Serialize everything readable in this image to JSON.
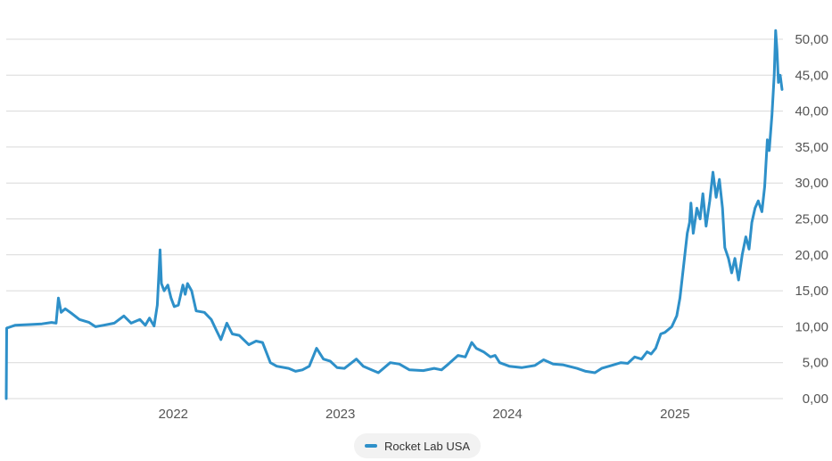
{
  "chart_data": {
    "type": "line",
    "title": "",
    "xlabel": "",
    "ylabel": "",
    "ylim": [
      0,
      50
    ],
    "xlim": [
      "2021-01-01",
      "2025-08-25"
    ],
    "y_ticks": [
      "0,00",
      "5,00",
      "10,00",
      "15,00",
      "20,00",
      "25,00",
      "30,00",
      "35,00",
      "40,00",
      "45,00",
      "50,00"
    ],
    "x_ticks": [
      {
        "label": "2022",
        "date": "2022-01-01"
      },
      {
        "label": "2023",
        "date": "2023-01-01"
      },
      {
        "label": "2024",
        "date": "2024-01-01"
      },
      {
        "label": "2025",
        "date": "2025-01-01"
      }
    ],
    "grid": true,
    "y_axis_position": "right",
    "legend_position": "bottom-center",
    "series": [
      {
        "name": "Rocket Lab USA",
        "color": "#2e90c9",
        "points": [
          [
            "2021-01-01",
            0.0
          ],
          [
            "2021-01-02",
            9.8
          ],
          [
            "2021-01-20",
            10.2
          ],
          [
            "2021-02-20",
            10.3
          ],
          [
            "2021-03-20",
            10.4
          ],
          [
            "2021-04-10",
            10.6
          ],
          [
            "2021-04-20",
            10.5
          ],
          [
            "2021-04-25",
            14.0
          ],
          [
            "2021-05-01",
            12.0
          ],
          [
            "2021-05-10",
            12.5
          ],
          [
            "2021-05-25",
            11.8
          ],
          [
            "2021-06-10",
            11.0
          ],
          [
            "2021-07-01",
            10.6
          ],
          [
            "2021-07-15",
            10.0
          ],
          [
            "2021-08-01",
            10.2
          ],
          [
            "2021-08-25",
            10.5
          ],
          [
            "2021-09-15",
            11.5
          ],
          [
            "2021-10-01",
            10.5
          ],
          [
            "2021-10-20",
            11.0
          ],
          [
            "2021-11-01",
            10.2
          ],
          [
            "2021-11-10",
            11.2
          ],
          [
            "2021-11-20",
            10.1
          ],
          [
            "2021-11-27",
            13.0
          ],
          [
            "2021-12-03",
            20.7
          ],
          [
            "2021-12-06",
            16.0
          ],
          [
            "2021-12-12",
            15.0
          ],
          [
            "2021-12-20",
            15.8
          ],
          [
            "2021-12-27",
            14.0
          ],
          [
            "2022-01-03",
            12.8
          ],
          [
            "2022-01-12",
            13.0
          ],
          [
            "2022-01-22",
            15.8
          ],
          [
            "2022-01-27",
            14.5
          ],
          [
            "2022-02-01",
            16.0
          ],
          [
            "2022-02-10",
            15.0
          ],
          [
            "2022-02-20",
            12.2
          ],
          [
            "2022-03-10",
            12.0
          ],
          [
            "2022-03-25",
            11.0
          ],
          [
            "2022-04-05",
            9.5
          ],
          [
            "2022-04-15",
            8.2
          ],
          [
            "2022-04-28",
            10.5
          ],
          [
            "2022-05-10",
            9.0
          ],
          [
            "2022-05-25",
            8.8
          ],
          [
            "2022-06-15",
            7.5
          ],
          [
            "2022-07-01",
            8.0
          ],
          [
            "2022-07-15",
            7.8
          ],
          [
            "2022-08-01",
            5.0
          ],
          [
            "2022-08-15",
            4.5
          ],
          [
            "2022-09-10",
            4.2
          ],
          [
            "2022-09-25",
            3.8
          ],
          [
            "2022-10-10",
            4.0
          ],
          [
            "2022-10-25",
            4.5
          ],
          [
            "2022-11-10",
            7.0
          ],
          [
            "2022-11-25",
            5.5
          ],
          [
            "2022-12-10",
            5.2
          ],
          [
            "2022-12-25",
            4.3
          ],
          [
            "2023-01-10",
            4.2
          ],
          [
            "2023-02-05",
            5.5
          ],
          [
            "2023-02-20",
            4.5
          ],
          [
            "2023-03-10",
            4.0
          ],
          [
            "2023-03-25",
            3.6
          ],
          [
            "2023-04-20",
            5.0
          ],
          [
            "2023-05-10",
            4.8
          ],
          [
            "2023-06-01",
            4.0
          ],
          [
            "2023-07-01",
            3.9
          ],
          [
            "2023-07-25",
            4.2
          ],
          [
            "2023-08-10",
            4.0
          ],
          [
            "2023-08-25",
            4.8
          ],
          [
            "2023-09-15",
            6.0
          ],
          [
            "2023-10-01",
            5.8
          ],
          [
            "2023-10-15",
            7.8
          ],
          [
            "2023-10-25",
            7.0
          ],
          [
            "2023-11-10",
            6.5
          ],
          [
            "2023-11-25",
            5.8
          ],
          [
            "2023-12-05",
            6.0
          ],
          [
            "2023-12-15",
            5.0
          ],
          [
            "2024-01-05",
            4.5
          ],
          [
            "2024-02-01",
            4.3
          ],
          [
            "2024-03-01",
            4.6
          ],
          [
            "2024-03-20",
            5.4
          ],
          [
            "2024-04-10",
            4.8
          ],
          [
            "2024-05-01",
            4.7
          ],
          [
            "2024-06-01",
            4.2
          ],
          [
            "2024-06-20",
            3.8
          ],
          [
            "2024-07-10",
            3.6
          ],
          [
            "2024-07-25",
            4.2
          ],
          [
            "2024-08-15",
            4.6
          ],
          [
            "2024-09-05",
            5.0
          ],
          [
            "2024-09-20",
            4.9
          ],
          [
            "2024-10-05",
            5.8
          ],
          [
            "2024-10-20",
            5.5
          ],
          [
            "2024-11-01",
            6.5
          ],
          [
            "2024-11-10",
            6.2
          ],
          [
            "2024-11-20",
            7.0
          ],
          [
            "2024-12-01",
            9.0
          ],
          [
            "2024-12-10",
            9.2
          ],
          [
            "2024-12-25",
            10.0
          ],
          [
            "2025-01-05",
            11.5
          ],
          [
            "2025-01-12",
            14.0
          ],
          [
            "2025-01-20",
            18.5
          ],
          [
            "2025-01-28",
            23.0
          ],
          [
            "2025-02-02",
            24.5
          ],
          [
            "2025-02-05",
            27.2
          ],
          [
            "2025-02-10",
            23.0
          ],
          [
            "2025-02-18",
            26.5
          ],
          [
            "2025-02-25",
            25.0
          ],
          [
            "2025-03-03",
            28.5
          ],
          [
            "2025-03-10",
            24.0
          ],
          [
            "2025-03-18",
            27.5
          ],
          [
            "2025-03-25",
            31.5
          ],
          [
            "2025-04-01",
            28.0
          ],
          [
            "2025-04-08",
            30.5
          ],
          [
            "2025-04-15",
            26.5
          ],
          [
            "2025-04-20",
            21.0
          ],
          [
            "2025-04-28",
            19.5
          ],
          [
            "2025-05-05",
            17.5
          ],
          [
            "2025-05-12",
            19.5
          ],
          [
            "2025-05-20",
            16.5
          ],
          [
            "2025-05-28",
            20.0
          ],
          [
            "2025-06-05",
            22.5
          ],
          [
            "2025-06-12",
            20.8
          ],
          [
            "2025-06-18",
            24.5
          ],
          [
            "2025-06-25",
            26.5
          ],
          [
            "2025-07-02",
            27.5
          ],
          [
            "2025-07-10",
            26.0
          ],
          [
            "2025-07-16",
            29.5
          ],
          [
            "2025-07-22",
            36.0
          ],
          [
            "2025-07-26",
            34.5
          ],
          [
            "2025-08-01",
            39.5
          ],
          [
            "2025-08-06",
            45.0
          ],
          [
            "2025-08-09",
            51.2
          ],
          [
            "2025-08-12",
            48.5
          ],
          [
            "2025-08-15",
            44.0
          ],
          [
            "2025-08-19",
            45.0
          ],
          [
            "2025-08-23",
            43.0
          ]
        ]
      }
    ]
  }
}
